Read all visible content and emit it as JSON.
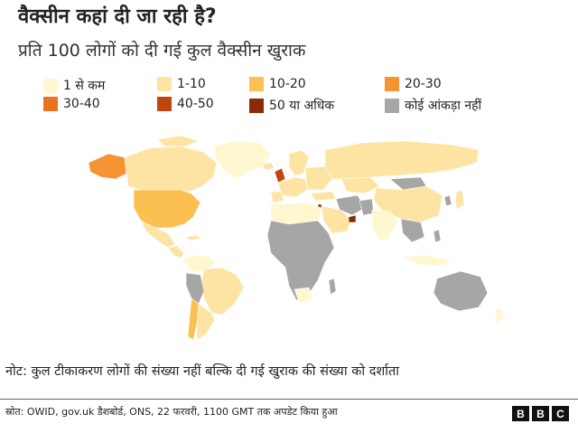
{
  "title": "वैक्सीन कहां दी जा रही है?",
  "subtitle": "प्रति 100 लोगों को दी गई कुल वैक्सीन खुराक",
  "legend": [
    {
      "label": "1 से कम",
      "color": "#fff7cf"
    },
    {
      "label": "1-10",
      "color": "#fde4a3"
    },
    {
      "label": "10-20",
      "color": "#fbbf52"
    },
    {
      "label": "20-30",
      "color": "#f59432"
    },
    {
      "label": "30-40",
      "color": "#e8731d"
    },
    {
      "label": "40-50",
      "color": "#c1450f"
    },
    {
      "label": "50 या अधिक",
      "color": "#8a2a06"
    },
    {
      "label": "कोई आंकड़ा नहीं",
      "color": "#a6a6a6"
    }
  ],
  "note": "नोट: कुल टीकाकरण लोगों की संख्या नहीं बल्कि दी गई खुराक की संख्या को दर्शाता",
  "source": "स्रोत: OWID, gov.uk डैशबोर्ड, ONS, 22 फरवरी, 1100 GMT तक अपडेट किया हुआ",
  "logo": {
    "letters": [
      "B",
      "B",
      "C"
    ]
  }
}
